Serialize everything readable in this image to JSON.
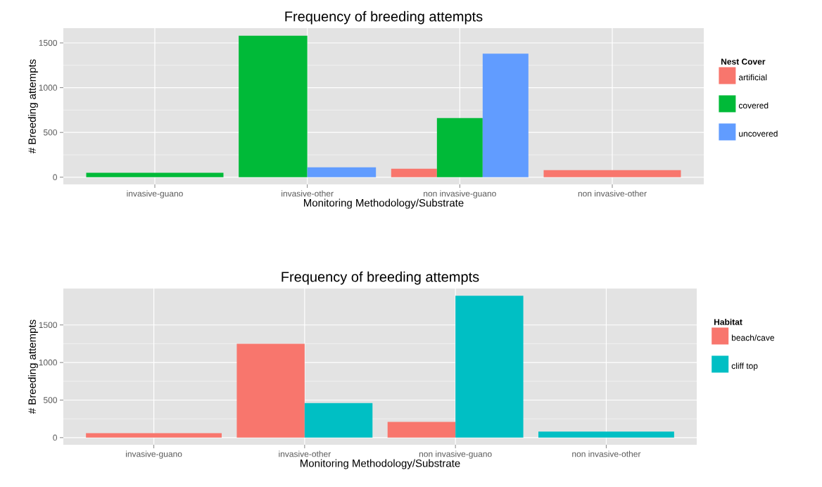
{
  "chart_data": [
    {
      "type": "bar",
      "title": "Frequency of breeding attempts",
      "xlabel": "Monitoring Methodology/Substrate",
      "ylabel": "# Breeding attempts",
      "legend_title": "Nest Cover",
      "legend": "right",
      "grid": true,
      "categories": [
        "invasive-guano",
        "invasive-other",
        "non invasive-guano",
        "non invasive-other"
      ],
      "series": [
        {
          "name": "artificial",
          "color": "#f8766d",
          "values": [
            null,
            null,
            95,
            80
          ]
        },
        {
          "name": "covered",
          "color": "#00ba38",
          "values": [
            50,
            1580,
            660,
            null
          ]
        },
        {
          "name": "uncovered",
          "color": "#619cff",
          "values": [
            null,
            110,
            1380,
            null
          ]
        }
      ],
      "ylim": [
        -80,
        1665
      ],
      "yticks": [
        0,
        500,
        1000,
        1500
      ]
    },
    {
      "type": "bar",
      "title": "Frequency of breeding attempts",
      "xlabel": "Monitoring Methodology/Substrate",
      "ylabel": "# Breeding attempts",
      "legend_title": "Habitat",
      "legend": "right",
      "grid": true,
      "categories": [
        "invasive-guano",
        "invasive-other",
        "non invasive-guano",
        "non invasive-other"
      ],
      "series": [
        {
          "name": "beach/cave",
          "color": "#f8766d",
          "values": [
            60,
            1250,
            210,
            null
          ]
        },
        {
          "name": "cliff top",
          "color": "#00bfc4",
          "values": [
            null,
            460,
            1890,
            80
          ]
        }
      ],
      "ylim": [
        -95,
        1985
      ],
      "yticks": [
        0,
        500,
        1000,
        1500
      ]
    }
  ]
}
